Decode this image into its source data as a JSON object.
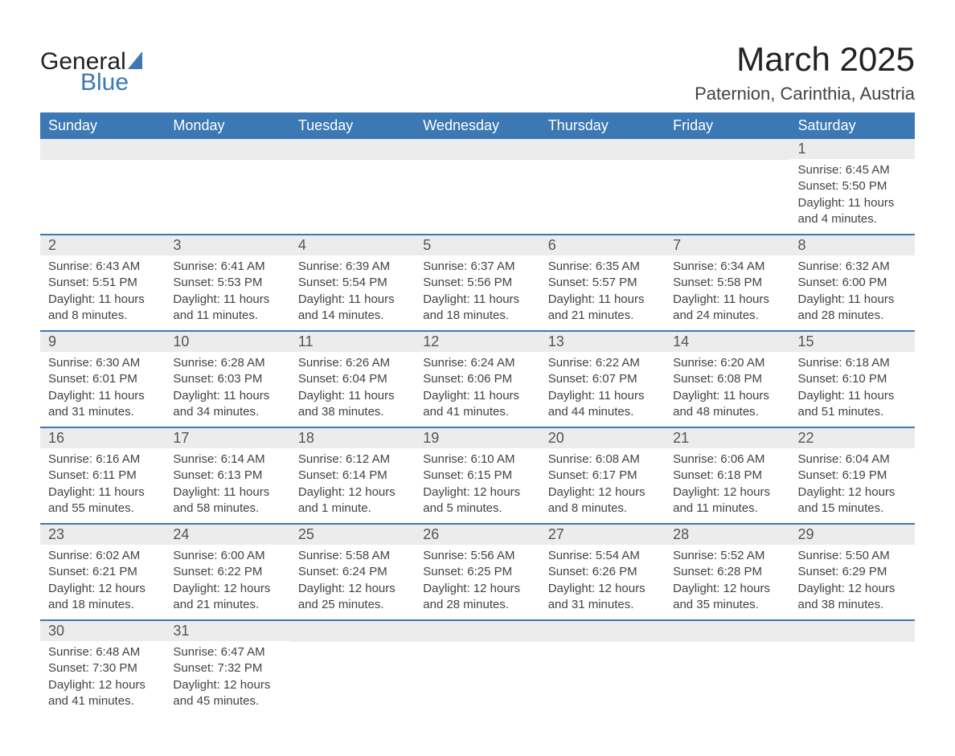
{
  "logo": {
    "text_general": "General",
    "text_blue": "Blue"
  },
  "title": "March 2025",
  "location": "Paternion, Carinthia, Austria",
  "weekdays": [
    "Sunday",
    "Monday",
    "Tuesday",
    "Wednesday",
    "Thursday",
    "Friday",
    "Saturday"
  ],
  "colors": {
    "header_bg": "#3c78b4",
    "header_text": "#ffffff",
    "daynum_bg": "#ececec",
    "daynum_text": "#555555",
    "body_text": "#424242",
    "row_border": "#3c78b4",
    "page_bg": "#ffffff"
  },
  "weeks": [
    [
      {
        "day": "",
        "sunrise": "",
        "sunset": "",
        "daylight": ""
      },
      {
        "day": "",
        "sunrise": "",
        "sunset": "",
        "daylight": ""
      },
      {
        "day": "",
        "sunrise": "",
        "sunset": "",
        "daylight": ""
      },
      {
        "day": "",
        "sunrise": "",
        "sunset": "",
        "daylight": ""
      },
      {
        "day": "",
        "sunrise": "",
        "sunset": "",
        "daylight": ""
      },
      {
        "day": "",
        "sunrise": "",
        "sunset": "",
        "daylight": ""
      },
      {
        "day": "1",
        "sunrise": "Sunrise: 6:45 AM",
        "sunset": "Sunset: 5:50 PM",
        "daylight": "Daylight: 11 hours and 4 minutes."
      }
    ],
    [
      {
        "day": "2",
        "sunrise": "Sunrise: 6:43 AM",
        "sunset": "Sunset: 5:51 PM",
        "daylight": "Daylight: 11 hours and 8 minutes."
      },
      {
        "day": "3",
        "sunrise": "Sunrise: 6:41 AM",
        "sunset": "Sunset: 5:53 PM",
        "daylight": "Daylight: 11 hours and 11 minutes."
      },
      {
        "day": "4",
        "sunrise": "Sunrise: 6:39 AM",
        "sunset": "Sunset: 5:54 PM",
        "daylight": "Daylight: 11 hours and 14 minutes."
      },
      {
        "day": "5",
        "sunrise": "Sunrise: 6:37 AM",
        "sunset": "Sunset: 5:56 PM",
        "daylight": "Daylight: 11 hours and 18 minutes."
      },
      {
        "day": "6",
        "sunrise": "Sunrise: 6:35 AM",
        "sunset": "Sunset: 5:57 PM",
        "daylight": "Daylight: 11 hours and 21 minutes."
      },
      {
        "day": "7",
        "sunrise": "Sunrise: 6:34 AM",
        "sunset": "Sunset: 5:58 PM",
        "daylight": "Daylight: 11 hours and 24 minutes."
      },
      {
        "day": "8",
        "sunrise": "Sunrise: 6:32 AM",
        "sunset": "Sunset: 6:00 PM",
        "daylight": "Daylight: 11 hours and 28 minutes."
      }
    ],
    [
      {
        "day": "9",
        "sunrise": "Sunrise: 6:30 AM",
        "sunset": "Sunset: 6:01 PM",
        "daylight": "Daylight: 11 hours and 31 minutes."
      },
      {
        "day": "10",
        "sunrise": "Sunrise: 6:28 AM",
        "sunset": "Sunset: 6:03 PM",
        "daylight": "Daylight: 11 hours and 34 minutes."
      },
      {
        "day": "11",
        "sunrise": "Sunrise: 6:26 AM",
        "sunset": "Sunset: 6:04 PM",
        "daylight": "Daylight: 11 hours and 38 minutes."
      },
      {
        "day": "12",
        "sunrise": "Sunrise: 6:24 AM",
        "sunset": "Sunset: 6:06 PM",
        "daylight": "Daylight: 11 hours and 41 minutes."
      },
      {
        "day": "13",
        "sunrise": "Sunrise: 6:22 AM",
        "sunset": "Sunset: 6:07 PM",
        "daylight": "Daylight: 11 hours and 44 minutes."
      },
      {
        "day": "14",
        "sunrise": "Sunrise: 6:20 AM",
        "sunset": "Sunset: 6:08 PM",
        "daylight": "Daylight: 11 hours and 48 minutes."
      },
      {
        "day": "15",
        "sunrise": "Sunrise: 6:18 AM",
        "sunset": "Sunset: 6:10 PM",
        "daylight": "Daylight: 11 hours and 51 minutes."
      }
    ],
    [
      {
        "day": "16",
        "sunrise": "Sunrise: 6:16 AM",
        "sunset": "Sunset: 6:11 PM",
        "daylight": "Daylight: 11 hours and 55 minutes."
      },
      {
        "day": "17",
        "sunrise": "Sunrise: 6:14 AM",
        "sunset": "Sunset: 6:13 PM",
        "daylight": "Daylight: 11 hours and 58 minutes."
      },
      {
        "day": "18",
        "sunrise": "Sunrise: 6:12 AM",
        "sunset": "Sunset: 6:14 PM",
        "daylight": "Daylight: 12 hours and 1 minute."
      },
      {
        "day": "19",
        "sunrise": "Sunrise: 6:10 AM",
        "sunset": "Sunset: 6:15 PM",
        "daylight": "Daylight: 12 hours and 5 minutes."
      },
      {
        "day": "20",
        "sunrise": "Sunrise: 6:08 AM",
        "sunset": "Sunset: 6:17 PM",
        "daylight": "Daylight: 12 hours and 8 minutes."
      },
      {
        "day": "21",
        "sunrise": "Sunrise: 6:06 AM",
        "sunset": "Sunset: 6:18 PM",
        "daylight": "Daylight: 12 hours and 11 minutes."
      },
      {
        "day": "22",
        "sunrise": "Sunrise: 6:04 AM",
        "sunset": "Sunset: 6:19 PM",
        "daylight": "Daylight: 12 hours and 15 minutes."
      }
    ],
    [
      {
        "day": "23",
        "sunrise": "Sunrise: 6:02 AM",
        "sunset": "Sunset: 6:21 PM",
        "daylight": "Daylight: 12 hours and 18 minutes."
      },
      {
        "day": "24",
        "sunrise": "Sunrise: 6:00 AM",
        "sunset": "Sunset: 6:22 PM",
        "daylight": "Daylight: 12 hours and 21 minutes."
      },
      {
        "day": "25",
        "sunrise": "Sunrise: 5:58 AM",
        "sunset": "Sunset: 6:24 PM",
        "daylight": "Daylight: 12 hours and 25 minutes."
      },
      {
        "day": "26",
        "sunrise": "Sunrise: 5:56 AM",
        "sunset": "Sunset: 6:25 PM",
        "daylight": "Daylight: 12 hours and 28 minutes."
      },
      {
        "day": "27",
        "sunrise": "Sunrise: 5:54 AM",
        "sunset": "Sunset: 6:26 PM",
        "daylight": "Daylight: 12 hours and 31 minutes."
      },
      {
        "day": "28",
        "sunrise": "Sunrise: 5:52 AM",
        "sunset": "Sunset: 6:28 PM",
        "daylight": "Daylight: 12 hours and 35 minutes."
      },
      {
        "day": "29",
        "sunrise": "Sunrise: 5:50 AM",
        "sunset": "Sunset: 6:29 PM",
        "daylight": "Daylight: 12 hours and 38 minutes."
      }
    ],
    [
      {
        "day": "30",
        "sunrise": "Sunrise: 6:48 AM",
        "sunset": "Sunset: 7:30 PM",
        "daylight": "Daylight: 12 hours and 41 minutes."
      },
      {
        "day": "31",
        "sunrise": "Sunrise: 6:47 AM",
        "sunset": "Sunset: 7:32 PM",
        "daylight": "Daylight: 12 hours and 45 minutes."
      },
      {
        "day": "",
        "sunrise": "",
        "sunset": "",
        "daylight": ""
      },
      {
        "day": "",
        "sunrise": "",
        "sunset": "",
        "daylight": ""
      },
      {
        "day": "",
        "sunrise": "",
        "sunset": "",
        "daylight": ""
      },
      {
        "day": "",
        "sunrise": "",
        "sunset": "",
        "daylight": ""
      },
      {
        "day": "",
        "sunrise": "",
        "sunset": "",
        "daylight": ""
      }
    ]
  ]
}
